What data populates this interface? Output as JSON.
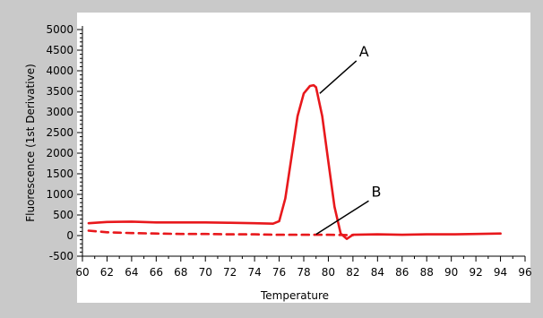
{
  "chart_data": {
    "type": "line",
    "xlabel": "Temperature",
    "ylabel": "Fluorescence (1st Derivative)",
    "xlim": [
      60,
      96
    ],
    "ylim": [
      -500,
      5000
    ],
    "x_ticks": [
      60,
      62,
      64,
      66,
      68,
      70,
      72,
      74,
      76,
      78,
      80,
      82,
      84,
      86,
      88,
      90,
      92,
      94,
      96
    ],
    "y_ticks": [
      -500,
      0,
      500,
      1000,
      1500,
      2000,
      2500,
      3000,
      3500,
      4000,
      4500,
      5000
    ],
    "grid": false,
    "series": [
      {
        "name": "A",
        "style": "solid",
        "color": "#e8181c",
        "x": [
          60.5,
          62,
          64,
          66,
          68,
          70,
          72,
          74,
          75.5,
          76,
          76.5,
          77,
          77.5,
          78,
          78.5,
          78.8,
          79,
          79.5,
          80,
          80.5,
          81,
          81.5,
          82,
          84,
          86,
          88,
          90,
          92,
          94
        ],
        "y": [
          300,
          330,
          340,
          320,
          320,
          320,
          310,
          300,
          290,
          350,
          900,
          1900,
          2900,
          3450,
          3630,
          3650,
          3600,
          2900,
          1800,
          700,
          50,
          -80,
          20,
          30,
          20,
          30,
          30,
          40,
          50
        ]
      },
      {
        "name": "B",
        "style": "dashed",
        "color": "#e8181c",
        "x": [
          60.5,
          62,
          64,
          66,
          68,
          70,
          72,
          74,
          76,
          78,
          80,
          82
        ],
        "y": [
          120,
          80,
          60,
          50,
          40,
          40,
          30,
          30,
          20,
          20,
          20,
          10
        ]
      }
    ],
    "annotations": [
      {
        "text": "A",
        "x": 82.5,
        "y": 4350,
        "point_x": 79.3,
        "point_y": 3450
      },
      {
        "text": "B",
        "x": 83.5,
        "y": 950,
        "point_x": 79.0,
        "point_y": 30
      }
    ]
  },
  "colors": {
    "page_background": "#c9c9c9",
    "plot_background": "#ffffff",
    "series_color": "#e8181c",
    "axis_color": "#000000"
  }
}
